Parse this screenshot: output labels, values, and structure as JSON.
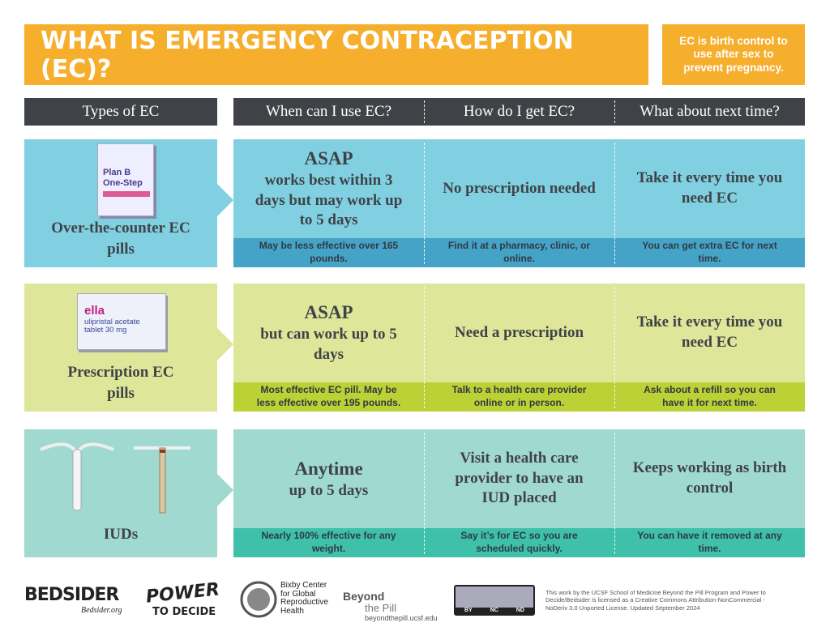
{
  "title": "WHAT IS EMERGENCY CONTRACEPTION (EC)?",
  "tagline": "EC is birth control to use after sex to prevent pregnancy.",
  "headers": [
    "Types of EC",
    "When can I use EC?",
    "How do I get EC?",
    "What about next time?"
  ],
  "rows": [
    {
      "type": "Over-the-counter EC pills",
      "product": [
        "Plan B",
        "One-Step"
      ],
      "cells": [
        {
          "lead": "ASAP",
          "main": "works best within 3 days but may work up to 5 days",
          "note": "May be less effective over 165 pounds."
        },
        {
          "main": "No prescription needed",
          "note": "Find it at a pharmacy, clinic, or online."
        },
        {
          "main": "Take it every time you need EC",
          "note": "You can get extra EC for next time."
        }
      ]
    },
    {
      "type": "Prescription EC pills",
      "product": [
        "ella",
        "ulipristal acetate tablet 30 mg"
      ],
      "cells": [
        {
          "lead": "ASAP",
          "main": "but can work up to 5 days",
          "note": "Most effective EC pill. May be less effective over 195 pounds."
        },
        {
          "main": "Need a prescription",
          "note": "Talk to a health care provider online or in person."
        },
        {
          "main": "Take it every time you need EC",
          "note": "Ask about a refill so you can have it for next time."
        }
      ]
    },
    {
      "type": "IUDs",
      "cells": [
        {
          "lead": "Anytime",
          "main": "up to 5 days",
          "note": "Nearly 100% effective for any weight."
        },
        {
          "main": "Visit a health care provider to have an IUD placed",
          "note": "Say it’s for EC so you are scheduled quickly."
        },
        {
          "main": "Keeps working as birth control",
          "note": "You can have it removed at any time."
        }
      ]
    }
  ],
  "footer": {
    "bedsider": "BEDSIDER",
    "bedsider_url": "Bedsider.org",
    "power": "POWER",
    "to_decide": "TO DECIDE",
    "bixby": "Bixby Center for Global Reproductive Health",
    "beyond": "Beyond",
    "the_pill": "the Pill",
    "beyond_url": "beyondthepill.ucsf.edu",
    "cc": [
      "BY",
      "NC",
      "ND"
    ],
    "license": "This work by the UCSF School of Medicine Beyond the Pill Program and Power to Decide/Bedsider is licensed as a Creative Commons Attribution-NonCommercial - NoDeriv 3.0 Unported License. Updated September 2024"
  }
}
